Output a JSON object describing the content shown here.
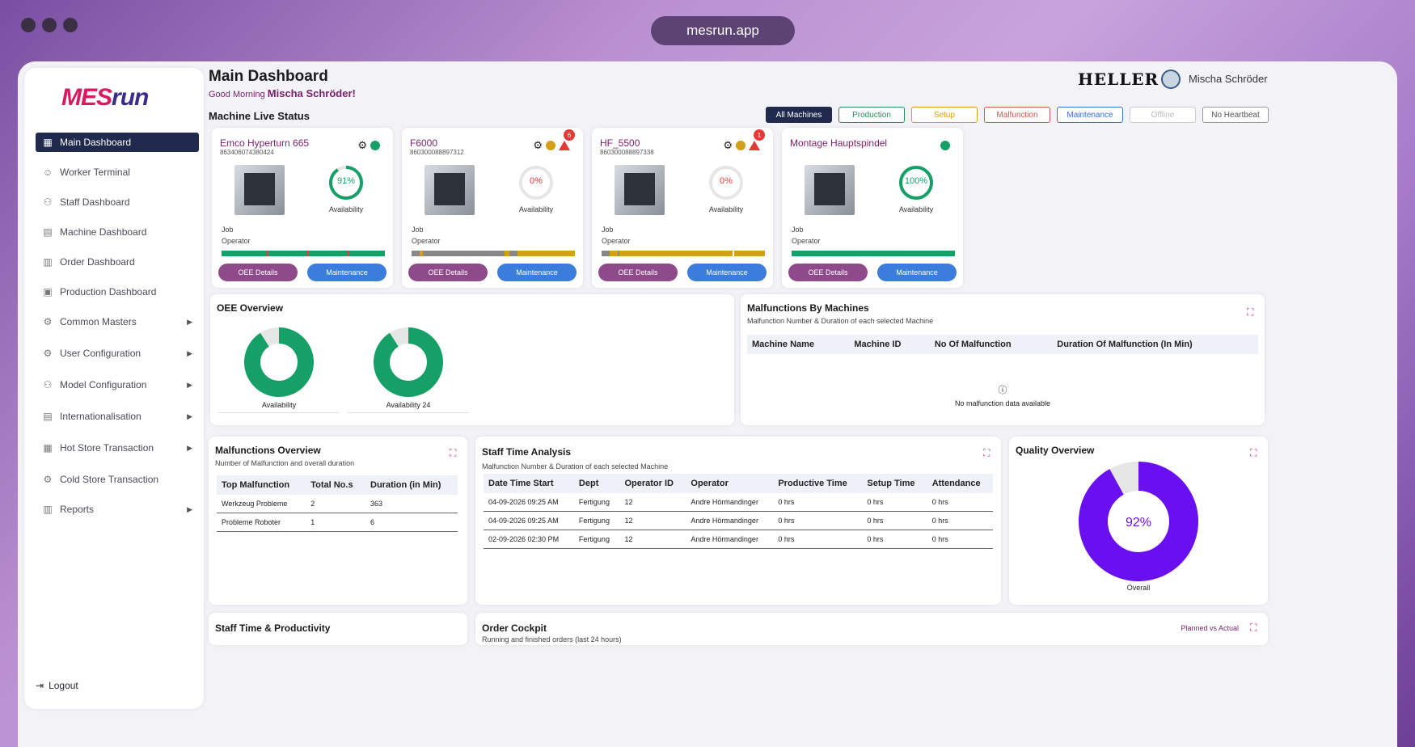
{
  "browser": {
    "url": "mesrun.app"
  },
  "sidebar": {
    "logo": {
      "part1": "MES",
      "part2": "run"
    },
    "items": [
      {
        "label": "Main Dashboard",
        "icon": "grid-icon",
        "active": true,
        "submenu": false
      },
      {
        "label": "Worker Terminal",
        "icon": "worker-icon",
        "submenu": false
      },
      {
        "label": "Staff Dashboard",
        "icon": "staff-icon",
        "submenu": false
      },
      {
        "label": "Machine Dashboard",
        "icon": "machine-icon",
        "submenu": false
      },
      {
        "label": "Order Dashboard",
        "icon": "order-icon",
        "submenu": false
      },
      {
        "label": "Production Dashboard",
        "icon": "production-icon",
        "submenu": false
      },
      {
        "label": "Common Masters",
        "icon": "masters-icon",
        "submenu": true
      },
      {
        "label": "User Configuration",
        "icon": "user-config-icon",
        "submenu": true
      },
      {
        "label": "Model Configuration",
        "icon": "model-config-icon",
        "submenu": true
      },
      {
        "label": "Internationalisation",
        "icon": "translate-icon",
        "submenu": true
      },
      {
        "label": "Hot Store Transaction",
        "icon": "hot-store-icon",
        "submenu": true
      },
      {
        "label": "Cold Store Transaction",
        "icon": "cold-store-icon",
        "submenu": false
      },
      {
        "label": "Reports",
        "icon": "reports-icon",
        "submenu": true
      }
    ],
    "logout": "Logout"
  },
  "header": {
    "title": "Main Dashboard",
    "greeting_prefix": "Good Morning",
    "greeting_name": "Mischa Schröder!",
    "brand": "HELLER",
    "user_name": "Mischa Schröder"
  },
  "live_status": {
    "label": "Machine Live Status",
    "filters": [
      "All Machines",
      "Production",
      "Setup",
      "Malfunction",
      "Maintenance",
      "Offline",
      "No Heartbeat"
    ],
    "machines": [
      {
        "name": "Emco Hyperturn 665",
        "id": "863406074380424",
        "availability": "91%",
        "availability_value": 91,
        "ring_color": "#16a067",
        "status_colors": [
          "#16a067"
        ],
        "warning_count": "",
        "availability_label": "Availability",
        "job": "Job",
        "operator": "Operator",
        "oee_label": "OEE Details",
        "maint_label": "Maintenance",
        "timeline": [
          {
            "c": "#16a067",
            "f": 27
          },
          {
            "c": "#e53935",
            "f": 1
          },
          {
            "c": "#16a067",
            "f": 24
          },
          {
            "c": "#e53935",
            "f": 1
          },
          {
            "c": "#16a067",
            "f": 24
          },
          {
            "c": "#e53935",
            "f": 1
          },
          {
            "c": "#16a067",
            "f": 22
          }
        ]
      },
      {
        "name": "F6000",
        "id": "860300088897312",
        "availability": "0%",
        "availability_value": 0,
        "ring_color": "#e53935",
        "status_colors": [
          "#d4a017"
        ],
        "warning_count": "6",
        "availability_label": "Availability",
        "job": "Job",
        "operator": "Operator",
        "oee_label": "OEE Details",
        "maint_label": "Maintenance",
        "timeline": [
          {
            "c": "#888",
            "f": 5
          },
          {
            "c": "#d4a017",
            "f": 2
          },
          {
            "c": "#888",
            "f": 50
          },
          {
            "c": "#d4a017",
            "f": 3
          },
          {
            "c": "#888",
            "f": 5
          },
          {
            "c": "#d4a017",
            "f": 35
          }
        ]
      },
      {
        "name": "HF_5500",
        "id": "860300088897338",
        "availability": "0%",
        "availability_value": 0,
        "ring_color": "#e53935",
        "status_colors": [
          "#d4a017"
        ],
        "warning_count": "1",
        "availability_label": "Availability",
        "job": "Job",
        "operator": "Operator",
        "oee_label": "OEE Details",
        "maint_label": "Maintenance",
        "timeline": [
          {
            "c": "#888",
            "f": 5
          },
          {
            "c": "#d4a017",
            "f": 5
          },
          {
            "c": "#888",
            "f": 1
          },
          {
            "c": "#d4a017",
            "f": 69
          },
          {
            "c": "#fff",
            "f": 1
          },
          {
            "c": "#d4a017",
            "f": 19
          }
        ]
      },
      {
        "name": "Montage Hauptspindel",
        "id": "",
        "availability": "100%",
        "availability_value": 100,
        "ring_color": "#16a067",
        "status_colors": [
          "#16a067"
        ],
        "warning_count": "",
        "availability_label": "Availability",
        "job": "Job",
        "operator": "Operator",
        "oee_label": "OEE Details",
        "maint_label": "Maintenance",
        "timeline": [
          {
            "c": "#16a067",
            "f": 100
          }
        ]
      }
    ]
  },
  "oee_overview": {
    "title": "OEE Overview",
    "donuts": [
      {
        "value": "91%",
        "fraction": 0.91,
        "label": "Availability"
      },
      {
        "value": "91%",
        "fraction": 0.91,
        "label": "Availability 24"
      }
    ]
  },
  "malfunctions_by_machines": {
    "title": "Malfunctions By Machines",
    "subtitle": "Malfunction Number & Duration of each selected Machine",
    "columns": [
      "Machine Name",
      "Machine ID",
      "No Of Malfunction",
      "Duration Of Malfunction (In Min)"
    ],
    "empty_text": "No malfunction data available"
  },
  "malfunctions_overview": {
    "title": "Malfunctions Overview",
    "subtitle": "Number of Malfunction and overall duration",
    "columns": [
      "Top Malfunction",
      "Total No.s",
      "Duration (in Min)"
    ],
    "rows": [
      [
        "Werkzeug Probleme",
        "2",
        "363"
      ],
      [
        "Probleme Roboter",
        "1",
        "6"
      ]
    ]
  },
  "staff_time_analysis": {
    "title": "Staff Time Analysis",
    "subtitle": "Malfunction Number & Duration of each selected Machine",
    "columns": [
      "Date Time Start",
      "Dept",
      "Operator ID",
      "Operator",
      "Productive Time",
      "Setup Time",
      "Attendance"
    ],
    "rows": [
      [
        "04-09-2026 09:25 AM",
        "Fertigung",
        "12",
        "Andre Hörmandinger",
        "0 hrs",
        "0 hrs",
        "0 hrs"
      ],
      [
        "04-09-2026 09:25 AM",
        "Fertigung",
        "12",
        "Andre Hörmandinger",
        "0 hrs",
        "0 hrs",
        "0 hrs"
      ],
      [
        "02-09-2026 02:30 PM",
        "Fertigung",
        "12",
        "Andre Hörmandinger",
        "0 hrs",
        "0 hrs",
        "0 hrs"
      ]
    ]
  },
  "quality_overview": {
    "title": "Quality Overview",
    "value": "92%",
    "fraction": 0.92,
    "label": "Overall"
  },
  "staff_productivity": {
    "title": "Staff Time & Productivity"
  },
  "order_cockpit": {
    "title": "Order Cockpit",
    "subtitle": "Running and finished orders (last 24 hours)",
    "toggle": "Planned vs Actual"
  },
  "colors": {
    "accent": "#1f2a4d",
    "brand": "#7a1f6a",
    "green": "#16a067",
    "purple": "#6a0ff0",
    "red": "#e53935",
    "yellow": "#d4a017",
    "blue": "#3b7ddd"
  }
}
